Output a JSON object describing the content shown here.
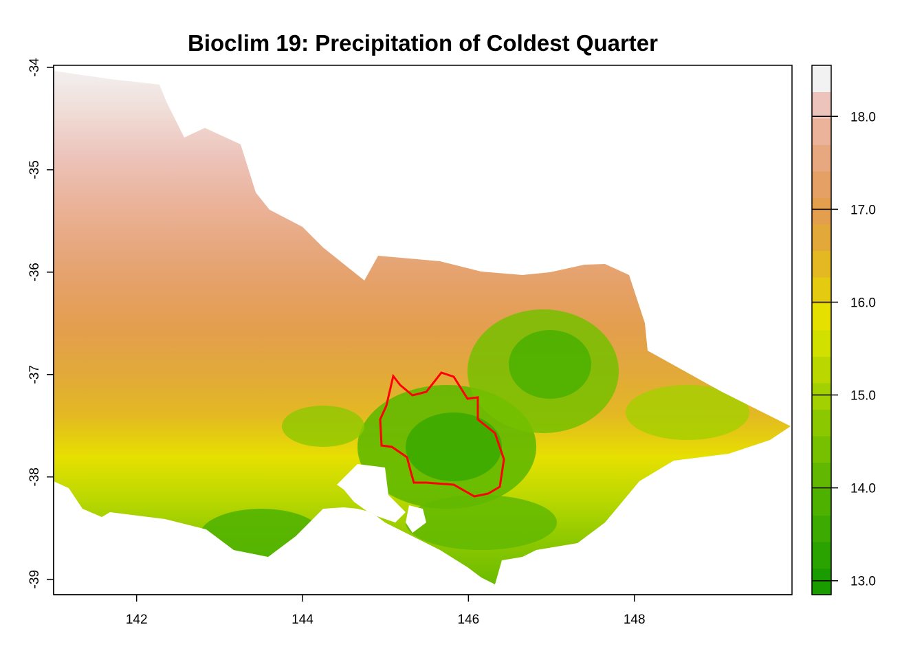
{
  "title": "Bioclim 19: Precipitation of Coldest Quarter",
  "map": {
    "x_ticks": [
      "142",
      "144",
      "146",
      "148"
    ],
    "y_ticks": [
      "-34",
      "-35",
      "-36",
      "-37",
      "-38",
      "-39"
    ],
    "x_range": [
      141.0,
      149.9
    ],
    "y_range": [
      -39.15,
      -33.98
    ],
    "outline_color": "#ff0000",
    "no_data_color": "#ffffff"
  },
  "legend": {
    "tick_labels": [
      "13.0",
      "14.0",
      "15.0",
      "16.0",
      "17.0",
      "18.0"
    ],
    "tick_values": [
      13.0,
      14.0,
      15.0,
      16.0,
      17.0,
      18.0
    ],
    "range": [
      12.85,
      18.55
    ],
    "colors": [
      "#1a9c00",
      "#2aa300",
      "#3caa00",
      "#4eb100",
      "#62b800",
      "#76c000",
      "#8cc800",
      "#a2d000",
      "#bad800",
      "#d2e000",
      "#e6e000",
      "#e4cb12",
      "#e3b823",
      "#e2a93a",
      "#e39f4d",
      "#e5a066",
      "#e7a87f",
      "#eab39a",
      "#ecc4bb",
      "#f2f2f2"
    ]
  },
  "chart_data": {
    "type": "heatmap",
    "title": "Bioclim 19: Precipitation of Coldest Quarter",
    "x_ticks": [
      142,
      144,
      146,
      148
    ],
    "y_ticks": [
      -34,
      -35,
      -36,
      -37,
      -38,
      -39
    ],
    "xlim": [
      141.0,
      149.9
    ],
    "ylim": [
      -39.15,
      -33.98
    ],
    "colorbar": {
      "ticks": [
        13.0,
        14.0,
        15.0,
        16.0,
        17.0,
        18.0
      ],
      "range": [
        12.85,
        18.55
      ]
    }
  }
}
